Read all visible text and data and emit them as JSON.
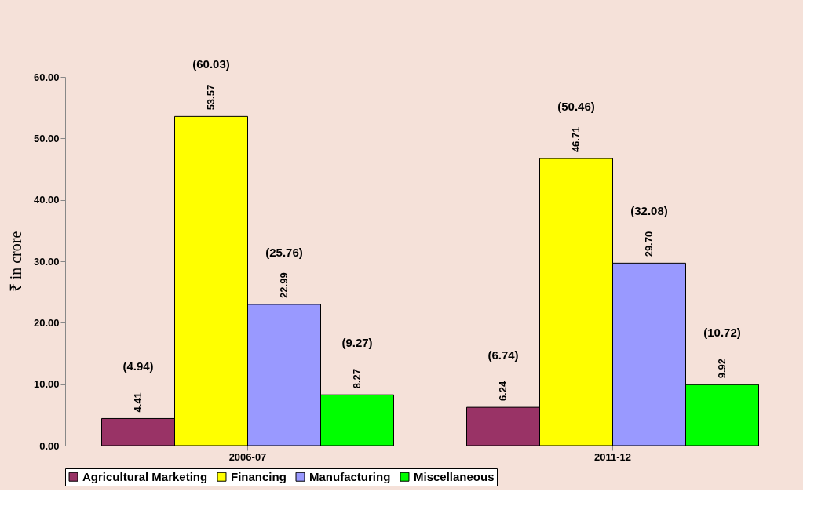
{
  "chart_data": {
    "type": "bar",
    "ylabel": "₹ in crore",
    "categories": [
      "2006-07",
      "2011-12"
    ],
    "series": [
      {
        "name": "Agricultural Marketing",
        "color": "#993366",
        "values": [
          4.41,
          6.24
        ],
        "value_labels": [
          "4.41",
          "6.24"
        ]
      },
      {
        "name": "Financing",
        "color": "#ffff00",
        "values": [
          53.57,
          46.71
        ],
        "value_labels": [
          "53.57",
          "46.71"
        ]
      },
      {
        "name": "Manufacturing",
        "color": "#9999ff",
        "values": [
          22.99,
          29.7
        ],
        "value_labels": [
          "22.99",
          "29.70"
        ]
      },
      {
        "name": "Miscellaneous",
        "color": "#00ff00",
        "values": [
          8.27,
          9.92
        ],
        "value_labels": [
          "8.27",
          "9.92"
        ]
      }
    ],
    "annotations": [
      "(4.94)",
      "(6.74)",
      "(60.03)",
      "(50.46)",
      "(25.76)",
      "(32.08)",
      "(9.27)",
      "(10.72)"
    ],
    "ylim": [
      0,
      60
    ],
    "yticks": [
      {
        "value": 0,
        "label": "0.00"
      },
      {
        "value": 10,
        "label": "10.00"
      },
      {
        "value": 20,
        "label": "20.00"
      },
      {
        "value": 30,
        "label": "30.00"
      },
      {
        "value": 40,
        "label": "40.00"
      },
      {
        "value": 50,
        "label": "50.00"
      },
      {
        "value": 60,
        "label": "60.00"
      }
    ],
    "grid": false,
    "legend": "bottom"
  }
}
